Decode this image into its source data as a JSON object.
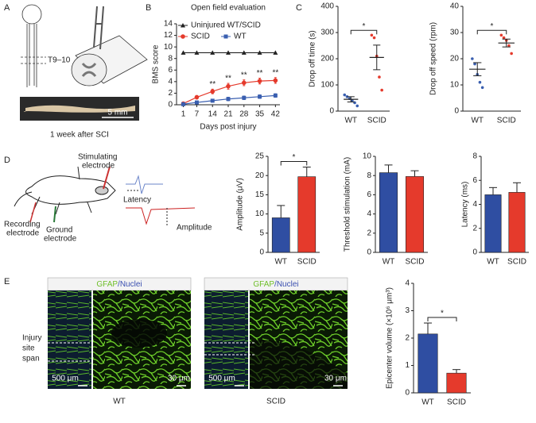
{
  "panel_labels": [
    "A",
    "B",
    "C",
    "D",
    "E"
  ],
  "panel_a": {
    "level": "T9–10",
    "scale_bar": "5 mm",
    "caption": "1 week after SCI"
  },
  "panel_d": {
    "stimulating": [
      "Stimulating",
      "electrode"
    ],
    "recording": [
      "Recording",
      "electrode"
    ],
    "ground": [
      "Ground",
      "electrode"
    ],
    "latency": "Latency",
    "amplitude": "Amplitude"
  },
  "panel_e": {
    "stain_green": "GFAP",
    "stain_blue": "/Nuclei",
    "injury": [
      "Injury",
      "site",
      "span"
    ],
    "scale_low": "500 μm",
    "scale_high": "30 μm",
    "groups": [
      "WT",
      "SCID"
    ]
  },
  "chart_data": [
    {
      "type": "line",
      "title": "Open field evaluation",
      "x_label": "Days post injury",
      "y_label": "BMS score",
      "x": [
        1,
        7,
        14,
        21,
        28,
        35,
        42
      ],
      "xlim": [
        -2,
        44
      ],
      "xticks": [
        1,
        7,
        14,
        21,
        28,
        35,
        42
      ],
      "ylim": [
        0,
        14
      ],
      "yticks": [
        0,
        2,
        4,
        6,
        8,
        10,
        12,
        14
      ],
      "legend": "upper left",
      "series": [
        {
          "name": "Uninjured WT/SCID",
          "color": "#222222",
          "marker": "triangle",
          "values": [
            9,
            9,
            9,
            9,
            9,
            9,
            9
          ]
        },
        {
          "name": "SCID",
          "color": "#e53a2c",
          "marker": "circle",
          "values": [
            0.2,
            1.3,
            2.3,
            3.2,
            3.8,
            4.1,
            4.2
          ],
          "errors": [
            0.1,
            0.3,
            0.4,
            0.5,
            0.5,
            0.5,
            0.5
          ]
        },
        {
          "name": "WT",
          "color": "#3a5fb0",
          "marker": "square",
          "values": [
            0.1,
            0.4,
            0.7,
            1.0,
            1.2,
            1.4,
            1.6
          ],
          "errors": [
            0.05,
            0.2,
            0.2,
            0.3,
            0.3,
            0.3,
            0.3
          ]
        }
      ],
      "annotations": [
        {
          "x": 14,
          "text": "**"
        },
        {
          "x": 21,
          "text": "**"
        },
        {
          "x": 28,
          "text": "**"
        },
        {
          "x": 35,
          "text": "**"
        },
        {
          "x": 42,
          "text": "**"
        }
      ]
    },
    {
      "type": "dot",
      "y_label": "Drop off time (s)",
      "categories": [
        "WT",
        "SCID"
      ],
      "colors": [
        "#3a5fb0",
        "#e53a2c"
      ],
      "points": [
        [
          62,
          55,
          48,
          40,
          32,
          20
        ],
        [
          290,
          280,
          210,
          130,
          80
        ]
      ],
      "means": [
        45,
        205
      ],
      "errors": [
        10,
        47
      ],
      "ylim": [
        0,
        400
      ],
      "yticks": [
        0,
        100,
        200,
        300,
        400
      ],
      "annotation": "*"
    },
    {
      "type": "dot",
      "y_label": "Drop off speed (rpm)",
      "categories": [
        "WT",
        "SCID"
      ],
      "colors": [
        "#3a5fb0",
        "#e53a2c"
      ],
      "points": [
        [
          20,
          18,
          14,
          11,
          9
        ],
        [
          29,
          28,
          27,
          25,
          22
        ]
      ],
      "means": [
        16,
        26
      ],
      "errors": [
        2.5,
        1.5
      ],
      "ylim": [
        0,
        40
      ],
      "yticks": [
        0,
        10,
        20,
        30,
        40
      ],
      "annotation": "*"
    },
    {
      "type": "bar",
      "y_label": "Amplitude (μV)",
      "categories": [
        "WT",
        "SCID"
      ],
      "colors": [
        "#2f4ea2",
        "#e53a2c"
      ],
      "values": [
        9.0,
        19.7
      ],
      "errors": [
        3.2,
        2.5
      ],
      "ylim": [
        0,
        25
      ],
      "yticks": [
        0,
        5,
        10,
        15,
        20,
        25
      ],
      "annotation": "*"
    },
    {
      "type": "bar",
      "y_label": "Threshold stimulation (mA)",
      "categories": [
        "WT",
        "SCID"
      ],
      "colors": [
        "#2f4ea2",
        "#e53a2c"
      ],
      "values": [
        8.3,
        7.9
      ],
      "errors": [
        0.8,
        0.6
      ],
      "ylim": [
        0,
        10
      ],
      "yticks": [
        0,
        2,
        4,
        6,
        8,
        10
      ]
    },
    {
      "type": "bar",
      "y_label": "Latency (ms)",
      "categories": [
        "WT",
        "SCID"
      ],
      "colors": [
        "#2f4ea2",
        "#e53a2c"
      ],
      "values": [
        4.8,
        5.0
      ],
      "errors": [
        0.6,
        0.8
      ],
      "ylim": [
        0,
        8
      ],
      "yticks": [
        0,
        2,
        4,
        6,
        8
      ]
    },
    {
      "type": "bar",
      "y_label": "Epicenter volume (×10⁶ μm³)",
      "categories": [
        "WT",
        "SCID"
      ],
      "colors": [
        "#2f4ea2",
        "#e53a2c"
      ],
      "values": [
        2.15,
        0.72
      ],
      "errors": [
        0.4,
        0.13
      ],
      "ylim": [
        0,
        4
      ],
      "yticks": [
        0,
        1,
        2,
        3,
        4
      ],
      "annotation": "*"
    }
  ]
}
